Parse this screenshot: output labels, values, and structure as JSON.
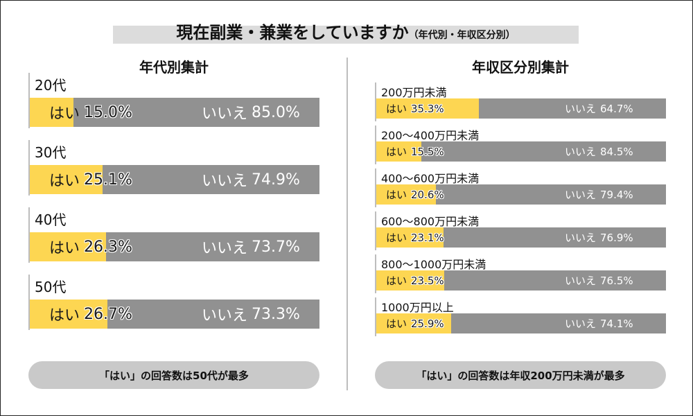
{
  "title": {
    "main": "現在副業・兼業をしていますか",
    "sub": "（年代別・年収区分別）"
  },
  "chart_data": [
    {
      "type": "bar",
      "title": "年代別集計",
      "stacked": true,
      "orientation": "horizontal",
      "categories": [
        "20代",
        "30代",
        "40代",
        "50代"
      ],
      "series": [
        {
          "name": "はい",
          "values": [
            15.0,
            25.1,
            26.3,
            26.7
          ],
          "color": "#fdd652"
        },
        {
          "name": "いいえ",
          "values": [
            85.0,
            74.9,
            73.7,
            73.3
          ],
          "color": "#919191"
        }
      ],
      "value_labels": {
        "yes": [
          "15.0%",
          "25.1%",
          "26.3%",
          "26.7%"
        ],
        "no": [
          "85.0%",
          "74.9%",
          "73.7%",
          "73.3%"
        ]
      },
      "xlim": [
        0,
        100
      ],
      "note": "「はい」の回答数は50代が最多"
    },
    {
      "type": "bar",
      "title": "年収区分別集計",
      "stacked": true,
      "orientation": "horizontal",
      "categories": [
        "200万円未満",
        "200～400万円未満",
        "400～600万円未満",
        "600～800万円未満",
        "800～1000万円未満",
        "1000万円以上"
      ],
      "series": [
        {
          "name": "はい",
          "values": [
            35.3,
            15.5,
            20.6,
            23.1,
            23.5,
            25.9
          ],
          "color": "#fdd652"
        },
        {
          "name": "いいえ",
          "values": [
            64.7,
            84.5,
            79.4,
            76.9,
            76.5,
            74.1
          ],
          "color": "#919191"
        }
      ],
      "value_labels": {
        "yes": [
          "35.3%",
          "15.5%",
          "20.6%",
          "23.1%",
          "23.5%",
          "25.9%"
        ],
        "no": [
          "64.7%",
          "84.5%",
          "79.4%",
          "76.9%",
          "76.5%",
          "74.1%"
        ]
      },
      "xlim": [
        0,
        100
      ],
      "note": "「はい」の回答数は年収200万円未満が最多"
    }
  ]
}
